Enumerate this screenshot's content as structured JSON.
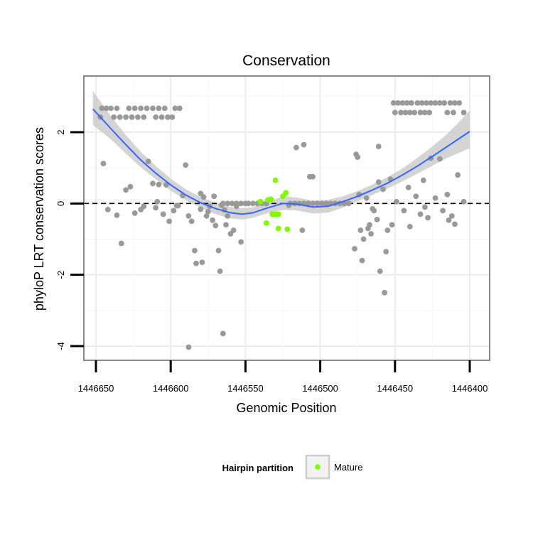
{
  "chart_data": {
    "type": "scatter",
    "title": "Conservation",
    "xlabel": "Genomic Position",
    "ylabel": "phyloP LRT conservation scores",
    "x_reversed": true,
    "xlim": [
      1446400,
      1446650
    ],
    "ylim": [
      -4.5,
      3.6
    ],
    "x_ticks": [
      1446650,
      1446600,
      1446550,
      1446500,
      1446450,
      1446400
    ],
    "x_tick_labels": [
      "1446650",
      "1446600",
      "1446550",
      "1446500",
      "1446450",
      "1446400"
    ],
    "y_ticks": [
      2,
      0,
      -2,
      -4
    ],
    "y_tick_labels": [
      "2",
      "0",
      "-2",
      "-4"
    ],
    "reference_line": {
      "y": 0,
      "style": "dashed"
    },
    "legend": {
      "title": "Hairpin partition",
      "entries": [
        {
          "label": "Mature",
          "color": "#7cfc00"
        }
      ],
      "position": "bottom"
    },
    "colors": {
      "other": "#999999",
      "mature": "#7cfc00",
      "smooth": "#3366ff",
      "band": "#cccccc",
      "panel_border": "#888888"
    },
    "series": [
      {
        "name": "Other",
        "points": [
          [
            1446646,
            2.67
          ],
          [
            1446643,
            2.67
          ],
          [
            1446640,
            2.67
          ],
          [
            1446636,
            2.67
          ],
          [
            1446628,
            2.67
          ],
          [
            1446624,
            2.67
          ],
          [
            1446620,
            2.67
          ],
          [
            1446616,
            2.67
          ],
          [
            1446612,
            2.67
          ],
          [
            1446608,
            2.67
          ],
          [
            1446604,
            2.67
          ],
          [
            1446597,
            2.67
          ],
          [
            1446594,
            2.67
          ],
          [
            1446647,
            2.42
          ],
          [
            1446638,
            2.42
          ],
          [
            1446634,
            2.42
          ],
          [
            1446630,
            2.42
          ],
          [
            1446626,
            2.42
          ],
          [
            1446622,
            2.42
          ],
          [
            1446618,
            2.42
          ],
          [
            1446610,
            2.42
          ],
          [
            1446606,
            2.42
          ],
          [
            1446602,
            2.42
          ],
          [
            1446599,
            2.42
          ],
          [
            1446645,
            1.12
          ],
          [
            1446642,
            -0.17
          ],
          [
            1446636,
            -0.33
          ],
          [
            1446633,
            -1.12
          ],
          [
            1446630,
            0.38
          ],
          [
            1446627,
            0.47
          ],
          [
            1446624,
            -0.27
          ],
          [
            1446620,
            -0.17
          ],
          [
            1446618,
            -0.08
          ],
          [
            1446615,
            1.18
          ],
          [
            1446612,
            0.56
          ],
          [
            1446610,
            -0.12
          ],
          [
            1446608,
            0.53
          ],
          [
            1446605,
            -0.3
          ],
          [
            1446603,
            0.52
          ],
          [
            1446601,
            -0.5
          ],
          [
            1446598,
            -0.2
          ],
          [
            1446595,
            -0.06
          ],
          [
            1446592,
            0.22
          ],
          [
            1446590,
            1.08
          ],
          [
            1446588,
            -0.35
          ],
          [
            1446586,
            -0.5
          ],
          [
            1446584,
            -1.32
          ],
          [
            1446583,
            -1.68
          ],
          [
            1446580,
            -0.16
          ],
          [
            1446579,
            -1.65
          ],
          [
            1446578,
            0.18
          ],
          [
            1446576,
            -0.35
          ],
          [
            1446574,
            -0.08
          ],
          [
            1446572,
            -0.47
          ],
          [
            1446570,
            -0.62
          ],
          [
            1446568,
            -1.32
          ],
          [
            1446567,
            -1.9
          ],
          [
            1446566,
            -0.05
          ],
          [
            1446565,
            -3.65
          ],
          [
            1446564,
            -0.18
          ],
          [
            1446562,
            -0.35
          ],
          [
            1446560,
            -0.85
          ],
          [
            1446558,
            -0.75
          ],
          [
            1446556,
            -0.08
          ],
          [
            1446553,
            -1.08
          ],
          [
            1446588,
            -4.03
          ],
          [
            1446609,
            0.05
          ],
          [
            1446596,
            -0.06
          ],
          [
            1446575,
            -0.23
          ],
          [
            1446571,
            0.2
          ],
          [
            1446563,
            -0.6
          ],
          [
            1446580,
            0.28
          ],
          [
            1446565,
            0.0
          ],
          [
            1446562,
            0.0
          ],
          [
            1446559,
            0.0
          ],
          [
            1446556,
            0.0
          ],
          [
            1446553,
            0.0
          ],
          [
            1446550,
            0.0
          ],
          [
            1446548,
            0.0
          ],
          [
            1446545,
            0.0
          ],
          [
            1446542,
            0.0
          ],
          [
            1446539,
            0.0
          ],
          [
            1446536,
            0.0
          ],
          [
            1446520,
            0.0
          ],
          [
            1446517,
            0.0
          ],
          [
            1446514,
            0.0
          ],
          [
            1446511,
            0.0
          ],
          [
            1446508,
            0.0
          ],
          [
            1446505,
            0.0
          ],
          [
            1446502,
            0.0
          ],
          [
            1446499,
            0.0
          ],
          [
            1446496,
            0.0
          ],
          [
            1446493,
            0.0
          ],
          [
            1446490,
            0.0
          ],
          [
            1446487,
            0.0
          ],
          [
            1446484,
            0.0
          ],
          [
            1446481,
            0.0
          ],
          [
            1446521,
            -0.05
          ],
          [
            1446516,
            1.57
          ],
          [
            1446512,
            -0.75
          ],
          [
            1446511,
            1.65
          ],
          [
            1446507,
            0.75
          ],
          [
            1446505,
            0.75
          ],
          [
            1446476,
            1.38
          ],
          [
            1446475,
            1.3
          ],
          [
            1446477,
            -1.27
          ],
          [
            1446474,
            0.25
          ],
          [
            1446473,
            -0.75
          ],
          [
            1446472,
            -1.6
          ],
          [
            1446471,
            -1.0
          ],
          [
            1446469,
            0.15
          ],
          [
            1446468,
            -0.7
          ],
          [
            1446467,
            -0.6
          ],
          [
            1446466,
            -0.85
          ],
          [
            1446465,
            -0.15
          ],
          [
            1446464,
            -0.2
          ],
          [
            1446462,
            -0.45
          ],
          [
            1446461,
            0.6
          ],
          [
            1446461,
            1.6
          ],
          [
            1446460,
            -1.9
          ],
          [
            1446458,
            0.4
          ],
          [
            1446457,
            -2.5
          ],
          [
            1446456,
            -1.35
          ],
          [
            1446455,
            -0.75
          ],
          [
            1446453,
            0.68
          ],
          [
            1446452,
            -0.6
          ],
          [
            1446449,
            0.05
          ],
          [
            1446444,
            -0.2
          ],
          [
            1446441,
            0.45
          ],
          [
            1446440,
            -0.65
          ],
          [
            1446436,
            0.2
          ],
          [
            1446433,
            -0.3
          ],
          [
            1446431,
            0.65
          ],
          [
            1446430,
            -0.1
          ],
          [
            1446428,
            -0.4
          ],
          [
            1446426,
            1.27
          ],
          [
            1446423,
            0.15
          ],
          [
            1446420,
            1.25
          ],
          [
            1446418,
            -0.2
          ],
          [
            1446415,
            0.25
          ],
          [
            1446414,
            -0.47
          ],
          [
            1446412,
            -0.35
          ],
          [
            1446410,
            -0.58
          ],
          [
            1446408,
            0.8
          ],
          [
            1446404,
            0.05
          ],
          [
            1446451,
            2.82
          ],
          [
            1446448,
            2.82
          ],
          [
            1446445,
            2.82
          ],
          [
            1446442,
            2.82
          ],
          [
            1446439,
            2.82
          ],
          [
            1446435,
            2.82
          ],
          [
            1446432,
            2.82
          ],
          [
            1446429,
            2.82
          ],
          [
            1446426,
            2.82
          ],
          [
            1446423,
            2.82
          ],
          [
            1446420,
            2.82
          ],
          [
            1446417,
            2.82
          ],
          [
            1446413,
            2.82
          ],
          [
            1446410,
            2.82
          ],
          [
            1446407,
            2.82
          ],
          [
            1446450,
            2.55
          ],
          [
            1446446,
            2.55
          ],
          [
            1446443,
            2.55
          ],
          [
            1446440,
            2.55
          ],
          [
            1446437,
            2.55
          ],
          [
            1446433,
            2.55
          ],
          [
            1446430,
            2.55
          ],
          [
            1446427,
            2.55
          ],
          [
            1446415,
            2.55
          ],
          [
            1446411,
            2.55
          ],
          [
            1446404,
            2.55
          ]
        ]
      },
      {
        "name": "Mature",
        "points": [
          [
            1446540,
            0.05
          ],
          [
            1446535,
            0.1
          ],
          [
            1446533,
            0.12
          ],
          [
            1446536,
            -0.55
          ],
          [
            1446532,
            -0.3
          ],
          [
            1446530,
            -0.3
          ],
          [
            1446530,
            0.65
          ],
          [
            1446528,
            -0.7
          ],
          [
            1446528,
            -0.3
          ],
          [
            1446525,
            0.2
          ],
          [
            1446523,
            0.3
          ],
          [
            1446522,
            -0.72
          ]
        ]
      }
    ],
    "smooth": {
      "x": [
        1446652,
        1446640,
        1446630,
        1446620,
        1446610,
        1446600,
        1446590,
        1446580,
        1446570,
        1446560,
        1446552,
        1446545,
        1446535,
        1446525,
        1446515,
        1446505,
        1446495,
        1446485,
        1446475,
        1446465,
        1446455,
        1446445,
        1446435,
        1446425,
        1446415,
        1446400
      ],
      "y": [
        2.65,
        2.1,
        1.65,
        1.22,
        0.85,
        0.52,
        0.24,
        0.02,
        -0.14,
        -0.26,
        -0.3,
        -0.26,
        -0.12,
        0.0,
        -0.02,
        -0.1,
        -0.08,
        0.05,
        0.2,
        0.38,
        0.57,
        0.8,
        1.05,
        1.32,
        1.6,
        2.02
      ],
      "ymin": [
        2.2,
        1.8,
        1.4,
        1.02,
        0.68,
        0.36,
        0.1,
        -0.12,
        -0.3,
        -0.42,
        -0.45,
        -0.4,
        -0.27,
        -0.18,
        -0.2,
        -0.28,
        -0.26,
        -0.12,
        0.06,
        0.24,
        0.42,
        0.62,
        0.84,
        1.06,
        1.28,
        1.55
      ],
      "ymax": [
        3.15,
        2.45,
        1.92,
        1.45,
        1.05,
        0.7,
        0.4,
        0.18,
        0.02,
        -0.1,
        -0.14,
        -0.1,
        0.04,
        0.2,
        0.16,
        0.08,
        0.1,
        0.2,
        0.35,
        0.53,
        0.74,
        0.98,
        1.28,
        1.6,
        1.95,
        2.6
      ]
    }
  }
}
